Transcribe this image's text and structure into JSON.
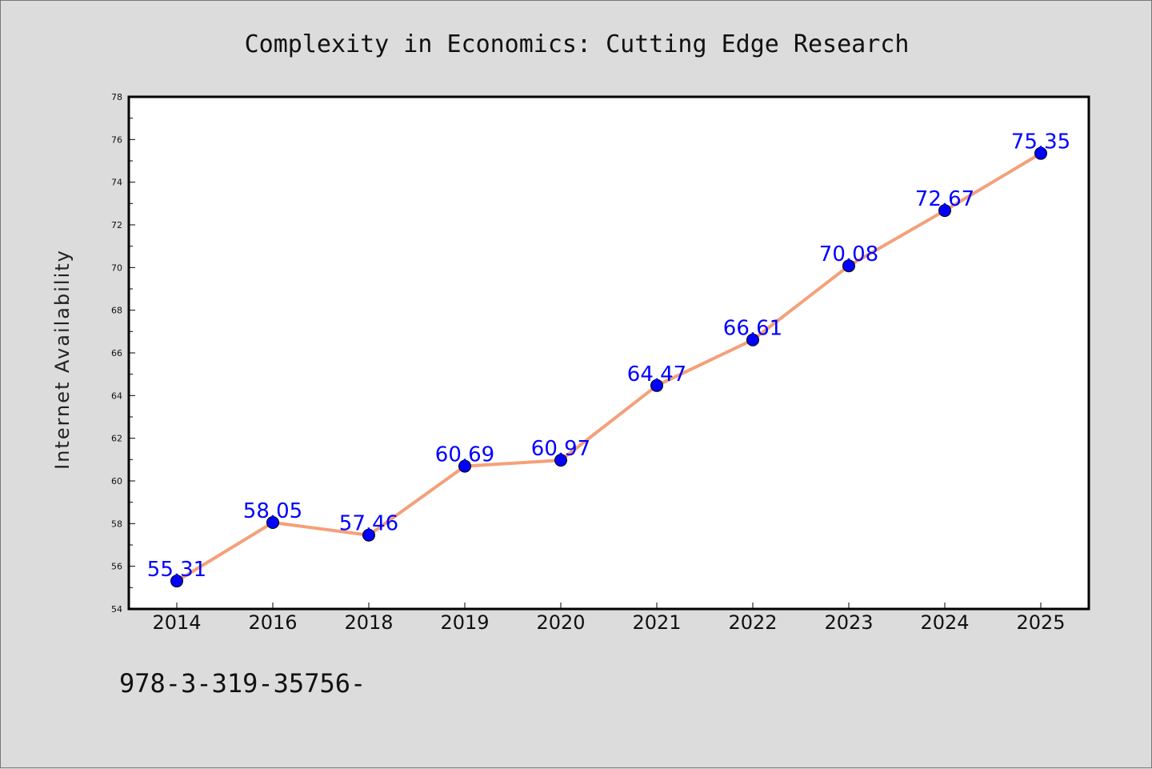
{
  "chart_data": {
    "type": "line",
    "title": "Complexity in Economics: Cutting Edge Research",
    "xlabel": "",
    "ylabel": "Internet Availability",
    "categories": [
      "2014",
      "2016",
      "2018",
      "2019",
      "2020",
      "2021",
      "2022",
      "2023",
      "2024",
      "2025"
    ],
    "series": [
      {
        "values": [
          55.31,
          58.05,
          57.46,
          60.69,
          60.97,
          64.47,
          66.61,
          70.08,
          72.67,
          75.35
        ],
        "labels": [
          "55.31",
          "58.05",
          "57.46",
          "60.69",
          "60.97",
          "64.47",
          "66.61",
          "70.08",
          "72.67",
          "75.35"
        ],
        "line_color": "#f4a07a",
        "marker_color": "#0000ff"
      }
    ],
    "ylim": [
      54,
      78
    ],
    "yticks": [
      "54",
      "56",
      "58",
      "60",
      "62",
      "64",
      "66",
      "68",
      "70",
      "72",
      "74",
      "76",
      "78"
    ],
    "grid": false,
    "legend": "none"
  },
  "footer_note": "978-3-319-35756-",
  "colors": {
    "background": "#dcdcdc",
    "plot_background": "#ffffff",
    "line": "#f4a07a",
    "marker": "#0000ff",
    "data_label": "#0000ff"
  }
}
